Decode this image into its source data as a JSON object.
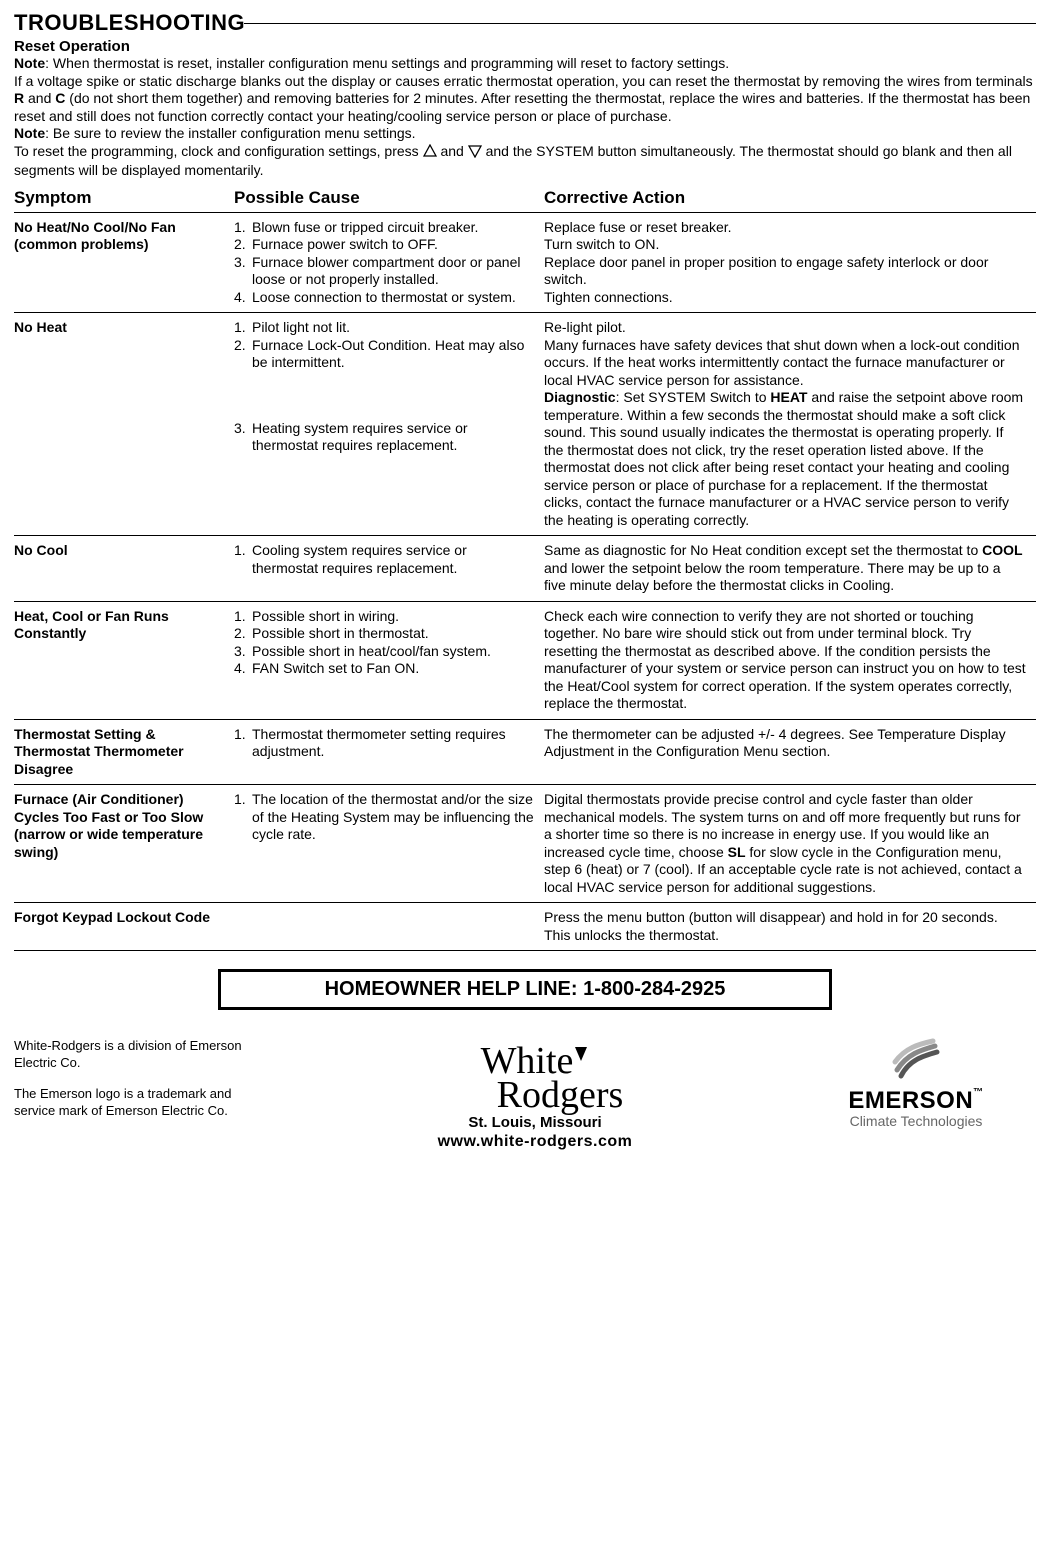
{
  "title": "TROUBLESHOOTING",
  "reset": {
    "heading": "Reset Operation",
    "note1_label": "Note",
    "note1_text": ": When thermostat is reset, installer configuration menu settings and programming will reset to factory settings.",
    "para1": "If a voltage spike or static discharge blanks out the display or causes erratic thermostat operation, you can reset the thermostat by removing the wires from terminals ",
    "r": "R",
    "para1b": " and ",
    "c": "C",
    "para1c": " (do not short them together) and removing batteries for 2 minutes. After resetting the thermostat, replace the wires and batteries. If the thermostat has been reset and still does not function correctly contact your heating/cooling service person or place of purchase.",
    "note2_label": "Note",
    "note2_text": ": Be sure to review the installer configuration menu settings.",
    "para2a": "To reset the programming, clock and configuration settings, press ",
    "para2b": " and ",
    "para2c": " and the SYSTEM button simultaneously. The thermostat should go blank and then all segments will be displayed momentarily."
  },
  "table": {
    "headers": {
      "symptom": "Symptom",
      "cause": "Possible Cause",
      "action": "Corrective Action"
    },
    "rows": [
      {
        "symptom": "No Heat/No Cool/No Fan (common problems)",
        "causes": [
          "Blown fuse or tripped circuit breaker.",
          "Furnace power switch to OFF.",
          "Furnace blower compartment door or panel loose or not properly installed.",
          "Loose connection to thermostat or system."
        ],
        "action": "Replace fuse or reset breaker.\nTurn switch to ON.\nReplace door panel in proper position to engage safety interlock or door switch.\nTighten connections."
      },
      {
        "symptom": "No Heat",
        "causes": [
          "Pilot light not lit.",
          "Furnace Lock-Out Condition. Heat may also be intermittent.",
          "",
          "Heating system requires service or thermostat requires replacement."
        ],
        "cause_gap_after": 2,
        "cause_numbers": [
          "1",
          "2",
          "",
          "3"
        ],
        "action_pre": "Re-light pilot.\nMany furnaces have safety devices that shut down when a lock-out condition occurs. If the heat works intermittently contact the furnace manufacturer or local HVAC service person for assistance.",
        "action_bold": "Diagnostic",
        "action_post": ": Set SYSTEM Switch to ",
        "action_heat": "HEAT",
        "action_post2": " and raise the setpoint above room temperature. Within a few seconds the thermostat should make a soft click sound. This sound usually indicates the thermostat is operating properly. If the thermostat does not click, try the reset operation listed above. If the thermostat does not click after being reset contact your heating and cooling service person or place of purchase for a replacement. If the thermostat clicks, contact the furnace manufacturer or a HVAC service person to verify the heating is operating correctly."
      },
      {
        "symptom": "No Cool",
        "causes": [
          "Cooling system requires service or thermostat requires replacement."
        ],
        "action_pre": "Same as diagnostic for No Heat condition except set the thermostat to ",
        "action_cool": "COOL",
        "action_post": " and lower the setpoint below the room temperature. There may be up to a five minute delay before the thermostat clicks in Cooling."
      },
      {
        "symptom": "Heat, Cool or Fan Runs Constantly",
        "causes": [
          "Possible short in wiring.",
          "Possible short in thermostat.",
          "Possible short in heat/cool/fan system.",
          "FAN Switch set to Fan ON."
        ],
        "cause_bold_last": "ON",
        "action": "Check each wire connection to verify they are not shorted or touching together. No bare wire should stick out from under terminal block. Try resetting the thermostat as described above. If the condition persists the manufacturer of your system or service person can instruct you on how to test the Heat/Cool system for correct operation. If the system operates correctly, replace the thermostat."
      },
      {
        "symptom": "Thermostat Setting & Thermostat Thermometer Disagree",
        "causes": [
          "Thermostat thermometer setting requires adjustment."
        ],
        "action": "The thermometer can be adjusted +/- 4 degrees. See Temperature Display Adjustment in the Configuration Menu section."
      },
      {
        "symptom": "Furnace (Air Conditioner) Cycles Too Fast or Too Slow (narrow or wide temperature swing)",
        "causes": [
          "The location of the thermostat and/or the size of the Heating System may be influencing the cycle rate."
        ],
        "action_pre": "Digital thermostats provide precise control and cycle faster than older mechanical models. The system turns on and off more frequently but runs for a shorter time so there is no increase in energy use. If you would like an increased cycle time, choose ",
        "action_sl": "SL",
        "action_post": " for slow cycle in the Configuration menu, step 6 (heat) or 7 (cool). If an acceptable cycle rate is not achieved, contact a local HVAC service person for additional suggestions."
      },
      {
        "symptom": "Forgot Keypad Lockout Code",
        "causes": [],
        "action": "Press the menu button (button will disappear) and hold in for 20 seconds. This unlocks the thermostat."
      }
    ]
  },
  "helpline": "HOMEOWNER HELP LINE:  1-800-284-2925",
  "footer": {
    "left1": "White-Rodgers is a division of Emerson Electric Co.",
    "left2": "The Emerson logo is a trademark and service mark of Emerson Electric Co.",
    "wr_white": "White",
    "wr_rodgers": "Rodgers",
    "city": "St. Louis, Missouri",
    "url": "www.white-rodgers.com",
    "emerson": "EMERSON",
    "emerson_sub": "Climate Technologies"
  },
  "colors": {
    "text": "#000000",
    "rule": "#000000",
    "emerson_gray": "#666666",
    "emerson_swoosh": "#555555"
  }
}
